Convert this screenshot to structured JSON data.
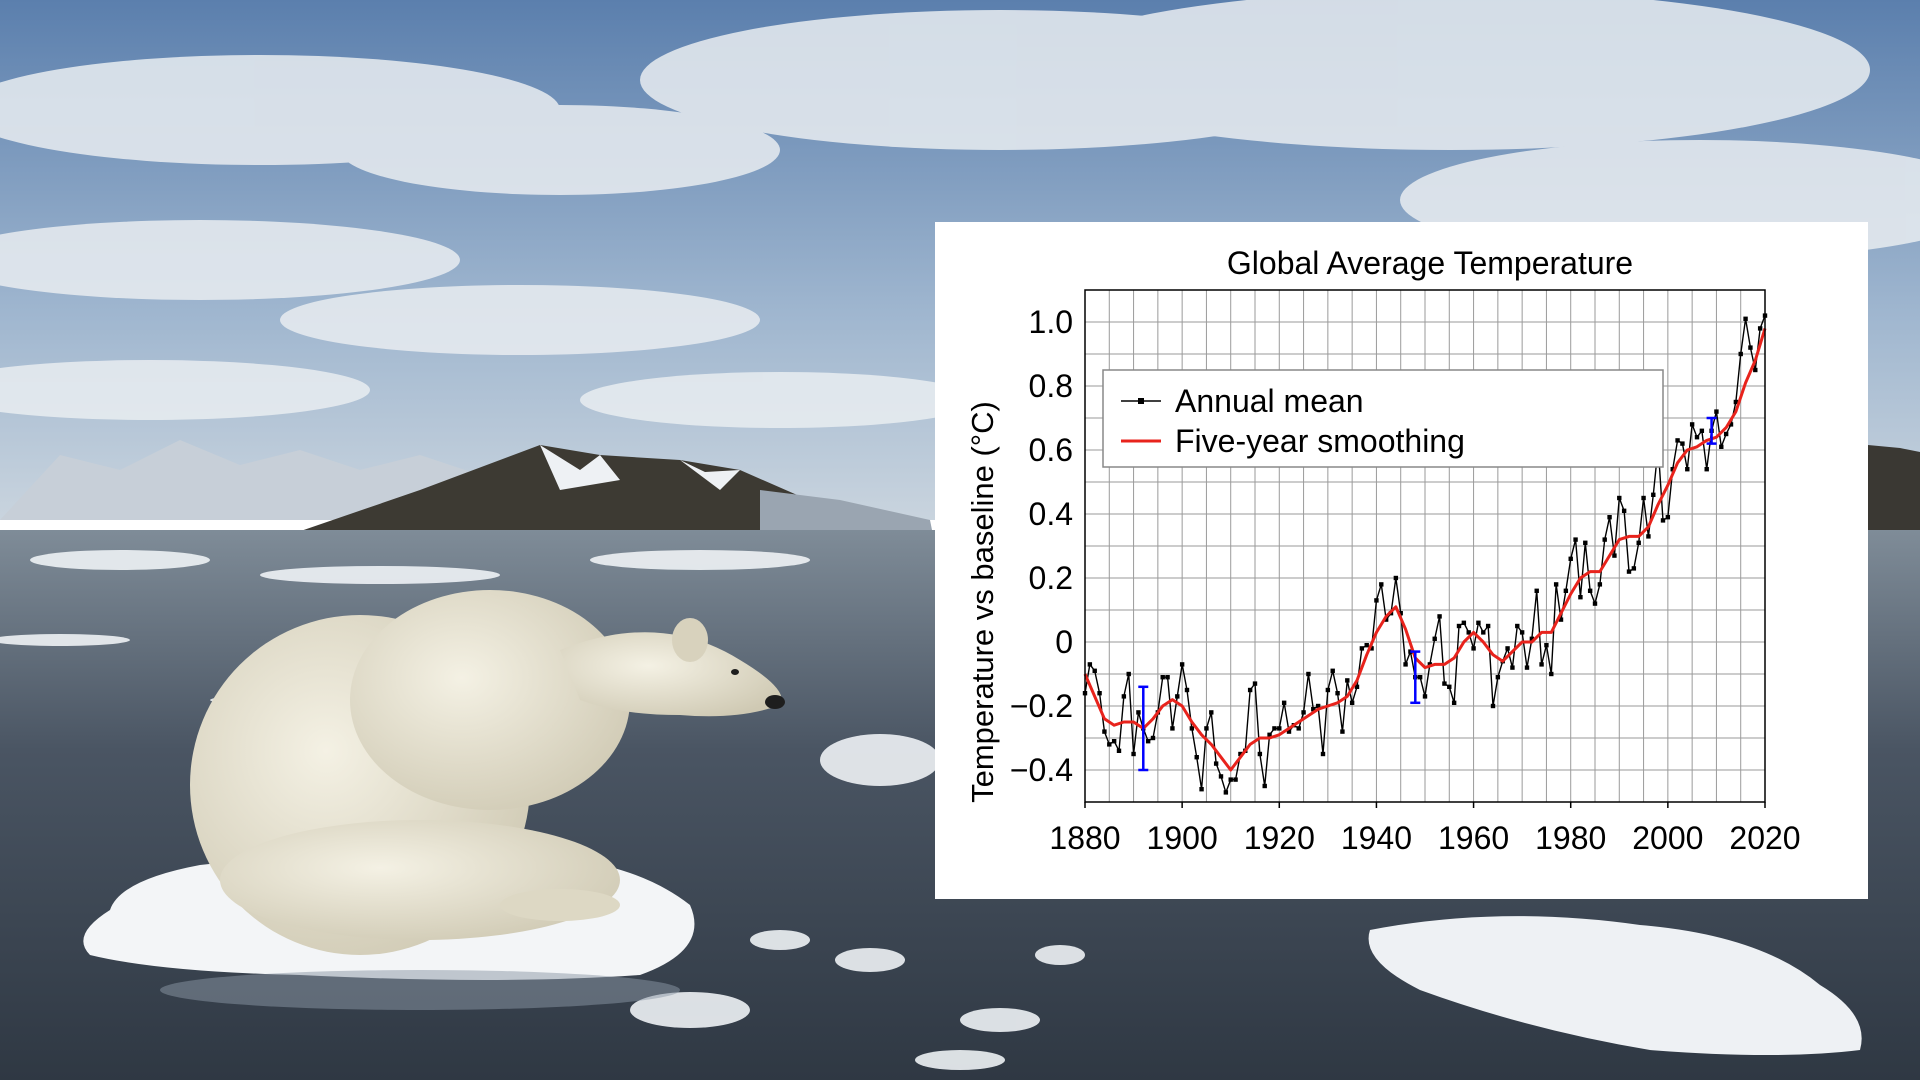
{
  "colors": {
    "sky_top": "#5b7fad",
    "sky_mid": "#9fb6cf",
    "water": "#3f4a57",
    "ice": "#eef2f5",
    "bear": "#e8e4d4",
    "annual_color": "#000000",
    "smooth_color": "#e8231c",
    "errorbar_color": "#0000ff"
  },
  "chart_data": {
    "type": "line",
    "title": "Global Average Temperature",
    "xlabel": "",
    "ylabel": "Temperature vs baseline (°C)",
    "xlim": [
      1880,
      2020
    ],
    "ylim": [
      -0.5,
      1.1
    ],
    "xticks": [
      1880,
      1900,
      1920,
      1940,
      1960,
      1980,
      2000,
      2020
    ],
    "yticks": [
      -0.4,
      -0.2,
      0,
      0.2,
      0.4,
      0.6,
      0.8,
      1.0
    ],
    "ytick_labels": [
      "−0.4",
      "−0.2",
      "0",
      "0.2",
      "0.4",
      "0.6",
      "0.8",
      "1.0"
    ],
    "grid": true,
    "legend_position": "top-left",
    "series": [
      {
        "name": "Annual mean",
        "style": "line-with-square-markers",
        "color": "#000000",
        "x": [
          1880,
          1881,
          1882,
          1883,
          1884,
          1885,
          1886,
          1887,
          1888,
          1889,
          1890,
          1891,
          1892,
          1893,
          1894,
          1895,
          1896,
          1897,
          1898,
          1899,
          1900,
          1901,
          1902,
          1903,
          1904,
          1905,
          1906,
          1907,
          1908,
          1909,
          1910,
          1911,
          1912,
          1913,
          1914,
          1915,
          1916,
          1917,
          1918,
          1919,
          1920,
          1921,
          1922,
          1923,
          1924,
          1925,
          1926,
          1927,
          1928,
          1929,
          1930,
          1931,
          1932,
          1933,
          1934,
          1935,
          1936,
          1937,
          1938,
          1939,
          1940,
          1941,
          1942,
          1943,
          1944,
          1945,
          1946,
          1947,
          1948,
          1949,
          1950,
          1951,
          1952,
          1953,
          1954,
          1955,
          1956,
          1957,
          1958,
          1959,
          1960,
          1961,
          1962,
          1963,
          1964,
          1965,
          1966,
          1967,
          1968,
          1969,
          1970,
          1971,
          1972,
          1973,
          1974,
          1975,
          1976,
          1977,
          1978,
          1979,
          1980,
          1981,
          1982,
          1983,
          1984,
          1985,
          1986,
          1987,
          1988,
          1989,
          1990,
          1991,
          1992,
          1993,
          1994,
          1995,
          1996,
          1997,
          1998,
          1999,
          2000,
          2001,
          2002,
          2003,
          2004,
          2005,
          2006,
          2007,
          2008,
          2009,
          2010,
          2011,
          2012,
          2013,
          2014,
          2015,
          2016,
          2017,
          2018,
          2019,
          2020
        ],
        "y": [
          -0.16,
          -0.07,
          -0.09,
          -0.16,
          -0.28,
          -0.32,
          -0.31,
          -0.34,
          -0.17,
          -0.1,
          -0.35,
          -0.22,
          -0.27,
          -0.31,
          -0.3,
          -0.22,
          -0.11,
          -0.11,
          -0.27,
          -0.17,
          -0.07,
          -0.15,
          -0.27,
          -0.36,
          -0.46,
          -0.27,
          -0.22,
          -0.38,
          -0.42,
          -0.47,
          -0.43,
          -0.43,
          -0.35,
          -0.34,
          -0.15,
          -0.13,
          -0.35,
          -0.45,
          -0.29,
          -0.27,
          -0.27,
          -0.19,
          -0.28,
          -0.26,
          -0.27,
          -0.22,
          -0.1,
          -0.21,
          -0.2,
          -0.35,
          -0.15,
          -0.09,
          -0.16,
          -0.28,
          -0.12,
          -0.19,
          -0.14,
          -0.02,
          -0.01,
          -0.02,
          0.13,
          0.18,
          0.07,
          0.09,
          0.2,
          0.09,
          -0.07,
          -0.03,
          -0.11,
          -0.11,
          -0.17,
          -0.07,
          0.01,
          0.08,
          -0.13,
          -0.14,
          -0.19,
          0.05,
          0.06,
          0.03,
          -0.02,
          0.06,
          0.03,
          0.05,
          -0.2,
          -0.11,
          -0.06,
          -0.02,
          -0.08,
          0.05,
          0.03,
          -0.08,
          0.01,
          0.16,
          -0.07,
          -0.01,
          -0.1,
          0.18,
          0.07,
          0.16,
          0.26,
          0.32,
          0.14,
          0.31,
          0.16,
          0.12,
          0.18,
          0.32,
          0.39,
          0.27,
          0.45,
          0.41,
          0.22,
          0.23,
          0.31,
          0.45,
          0.33,
          0.46,
          0.61,
          0.38,
          0.39,
          0.54,
          0.63,
          0.62,
          0.54,
          0.68,
          0.64,
          0.66,
          0.54,
          0.66,
          0.72,
          0.61,
          0.65,
          0.68,
          0.75,
          0.9,
          1.01,
          0.92,
          0.85,
          0.98,
          1.02
        ]
      },
      {
        "name": "Five-year smoothing",
        "style": "line",
        "color": "#e8231c",
        "x": [
          1880,
          1884,
          1886,
          1888,
          1890,
          1892,
          1894,
          1896,
          1898,
          1900,
          1902,
          1904,
          1906,
          1908,
          1910,
          1912,
          1914,
          1916,
          1918,
          1920,
          1922,
          1924,
          1926,
          1928,
          1930,
          1932,
          1934,
          1936,
          1938,
          1940,
          1942,
          1944,
          1946,
          1948,
          1950,
          1952,
          1954,
          1956,
          1958,
          1960,
          1962,
          1964,
          1966,
          1968,
          1970,
          1972,
          1974,
          1976,
          1978,
          1980,
          1982,
          1984,
          1986,
          1988,
          1990,
          1992,
          1994,
          1996,
          1998,
          2000,
          2002,
          2004,
          2006,
          2008,
          2010,
          2012,
          2014,
          2016,
          2018,
          2020
        ],
        "y": [
          -0.1,
          -0.24,
          -0.26,
          -0.25,
          -0.25,
          -0.27,
          -0.24,
          -0.2,
          -0.18,
          -0.2,
          -0.25,
          -0.29,
          -0.32,
          -0.36,
          -0.4,
          -0.36,
          -0.32,
          -0.3,
          -0.3,
          -0.29,
          -0.27,
          -0.25,
          -0.23,
          -0.21,
          -0.2,
          -0.19,
          -0.17,
          -0.12,
          -0.04,
          0.03,
          0.08,
          0.11,
          0.04,
          -0.05,
          -0.08,
          -0.07,
          -0.07,
          -0.05,
          0.0,
          0.03,
          0.0,
          -0.04,
          -0.06,
          -0.03,
          0.0,
          0.0,
          0.03,
          0.03,
          0.09,
          0.15,
          0.2,
          0.22,
          0.22,
          0.27,
          0.32,
          0.33,
          0.33,
          0.36,
          0.43,
          0.49,
          0.56,
          0.6,
          0.61,
          0.63,
          0.64,
          0.67,
          0.72,
          0.81,
          0.88,
          0.98
        ]
      }
    ],
    "error_bars": [
      {
        "x": 1892,
        "y_low": -0.4,
        "y_high": -0.14
      },
      {
        "x": 1948,
        "y_low": -0.19,
        "y_high": -0.03
      },
      {
        "x": 2009,
        "y_low": 0.62,
        "y_high": 0.7
      }
    ]
  }
}
